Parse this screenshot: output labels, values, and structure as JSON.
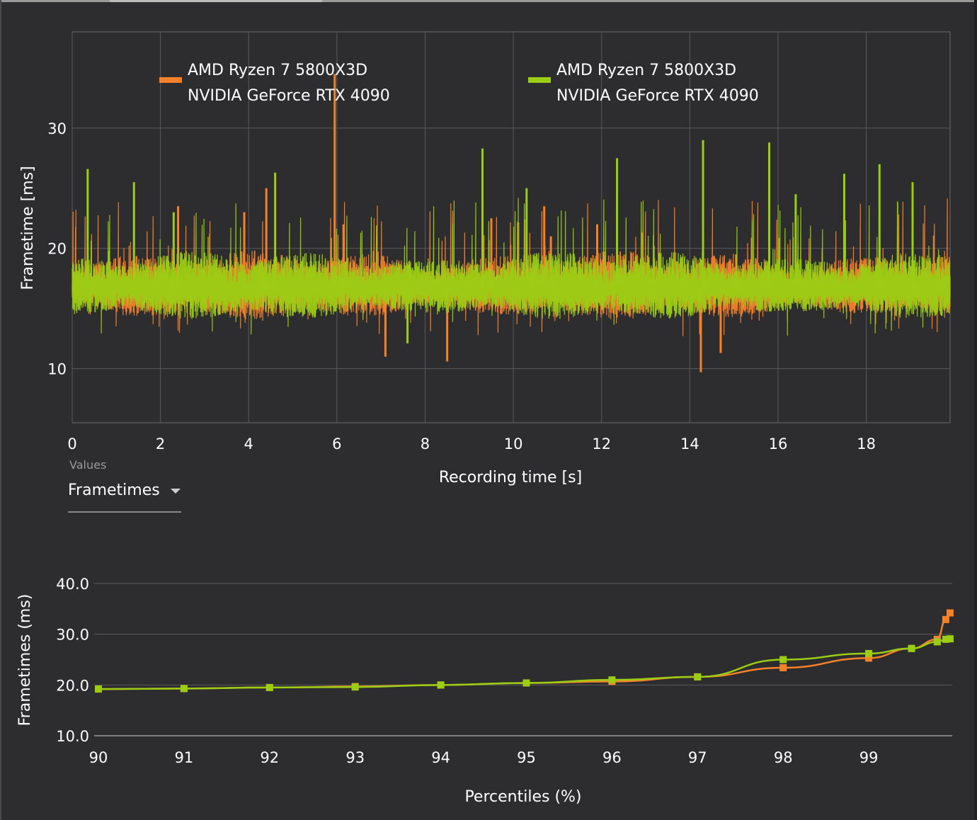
{
  "colors": {
    "series_orange": "#f5822a",
    "series_green": "#9acd14",
    "background": "#2d2d2f",
    "grid": "#5a5a5a"
  },
  "values_selector": {
    "caption": "Values",
    "selected": "Frametimes"
  },
  "chart_data": [
    {
      "type": "line",
      "xlabel": "Recording time [s]",
      "ylabel": "Frametime [ms]",
      "xlim": [
        0,
        19.9
      ],
      "ylim": [
        5.5,
        38
      ],
      "x_ticks": [
        0,
        2,
        4,
        6,
        8,
        10,
        12,
        14,
        16,
        18
      ],
      "y_ticks": [
        10,
        20,
        30
      ],
      "grid": true,
      "legend": "top",
      "series": [
        {
          "name": "AMD Ryzen 7 5800X3D\nNVIDIA GeForce RTX 4090",
          "legend_line1": "AMD Ryzen 7 5800X3D",
          "legend_line2": "NVIDIA GeForce RTX 4090",
          "color": "#f5822a",
          "baseline": 16.7,
          "spikes": [
            [
              2.4,
              23.5
            ],
            [
              3.9,
              23
            ],
            [
              4.4,
              25
            ],
            [
              5.95,
              34.5
            ],
            [
              6.15,
              22
            ],
            [
              7.1,
              11
            ],
            [
              8.5,
              10.6
            ],
            [
              9.5,
              22.5
            ],
            [
              10.7,
              23.5
            ],
            [
              10.85,
              21
            ],
            [
              11.9,
              22
            ],
            [
              14.25,
              9.7
            ],
            [
              14.7,
              11.3
            ],
            [
              15.05,
              19.5
            ],
            [
              18.3,
              20
            ],
            [
              19.8,
              19
            ]
          ]
        },
        {
          "name": "AMD Ryzen 7 5800X3D\nNVIDIA GeForce RTX 4090",
          "legend_line1": "AMD Ryzen 7 5800X3D",
          "legend_line2": "NVIDIA GeForce RTX 4090",
          "color": "#9acd14",
          "baseline": 16.7,
          "spikes": [
            [
              0.35,
              26.6
            ],
            [
              1.4,
              25.5
            ],
            [
              2.3,
              23
            ],
            [
              4.6,
              26.3
            ],
            [
              7.6,
              12.1
            ],
            [
              9.3,
              28.3
            ],
            [
              10.3,
              25
            ],
            [
              12.35,
              27.5
            ],
            [
              14.3,
              29
            ],
            [
              15.8,
              28.8
            ],
            [
              16.4,
              24.5
            ],
            [
              17.5,
              26.2
            ],
            [
              18.3,
              27
            ],
            [
              19.05,
              25.5
            ]
          ]
        }
      ]
    },
    {
      "type": "line",
      "xlabel": "Percentiles (%)",
      "ylabel": "Frametimes (ms)",
      "xlim": [
        90,
        100
      ],
      "ylim": [
        10,
        40
      ],
      "x_ticks": [
        90,
        91,
        92,
        93,
        94,
        95,
        96,
        97,
        98,
        99
      ],
      "y_ticks": [
        "10.0",
        "20.0",
        "30.0",
        "40.0"
      ],
      "grid": true,
      "series": [
        {
          "color": "#f5822a",
          "x": [
            90,
            91,
            92,
            93,
            94,
            95,
            96,
            97,
            98,
            99,
            99.5,
            99.8,
            99.9,
            99.95
          ],
          "y": [
            19.2,
            19.3,
            19.5,
            19.7,
            20.0,
            20.4,
            20.7,
            21.6,
            23.4,
            25.3,
            27.2,
            29.0,
            32.9,
            34.2
          ]
        },
        {
          "color": "#9acd14",
          "x": [
            90,
            91,
            92,
            93,
            94,
            95,
            96,
            97,
            98,
            99,
            99.5,
            99.8,
            99.9,
            99.95
          ],
          "y": [
            19.2,
            19.3,
            19.5,
            19.6,
            20.0,
            20.4,
            21.0,
            21.6,
            25.0,
            26.2,
            27.2,
            28.5,
            29.0,
            29.1
          ]
        }
      ]
    }
  ]
}
